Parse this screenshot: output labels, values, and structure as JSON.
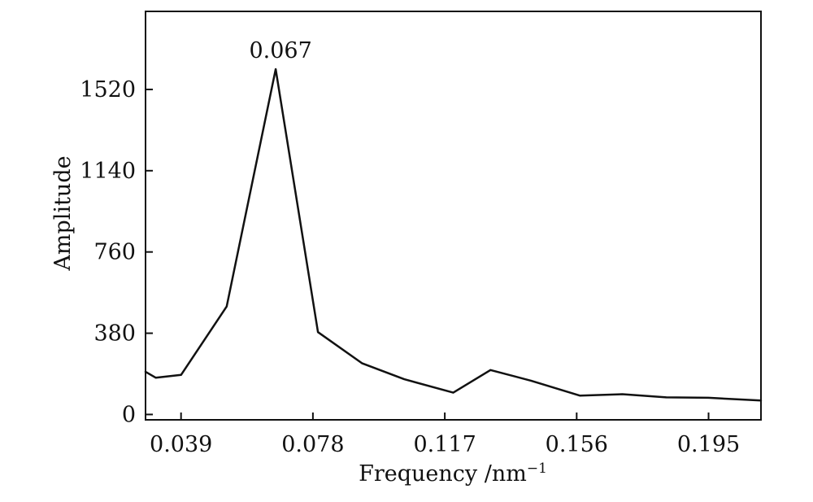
{
  "chart_data": {
    "type": "line",
    "xlabel": "Frequency /nm",
    "xlabel_superscript": "−1",
    "ylabel": "Amplitude",
    "xlim": [
      0.0285,
      0.2105
    ],
    "ylim": [
      -25,
      1885
    ],
    "x_ticks": [
      {
        "value": 0.039,
        "label": "0.039"
      },
      {
        "value": 0.078,
        "label": "0.078"
      },
      {
        "value": 0.117,
        "label": "0.117"
      },
      {
        "value": 0.156,
        "label": "0.156"
      },
      {
        "value": 0.195,
        "label": "0.195"
      }
    ],
    "y_ticks": [
      {
        "value": 0,
        "label": "0"
      },
      {
        "value": 380,
        "label": "380"
      },
      {
        "value": 760,
        "label": "760"
      },
      {
        "value": 1140,
        "label": "1140"
      },
      {
        "value": 1520,
        "label": "1520"
      }
    ],
    "grid": false,
    "series": [
      {
        "points": [
          {
            "x": 0.0285,
            "y": 200
          },
          {
            "x": 0.0315,
            "y": 172
          },
          {
            "x": 0.039,
            "y": 185
          },
          {
            "x": 0.0525,
            "y": 505
          },
          {
            "x": 0.067,
            "y": 1615
          },
          {
            "x": 0.0795,
            "y": 385
          },
          {
            "x": 0.0925,
            "y": 240
          },
          {
            "x": 0.105,
            "y": 165
          },
          {
            "x": 0.1195,
            "y": 102
          },
          {
            "x": 0.1305,
            "y": 208
          },
          {
            "x": 0.1425,
            "y": 158
          },
          {
            "x": 0.157,
            "y": 88
          },
          {
            "x": 0.1695,
            "y": 95
          },
          {
            "x": 0.1825,
            "y": 80
          },
          {
            "x": 0.195,
            "y": 78
          },
          {
            "x": 0.2105,
            "y": 65
          }
        ]
      }
    ],
    "annotations": [
      {
        "text": "0.067",
        "x": 0.067,
        "y": 1615
      }
    ]
  }
}
